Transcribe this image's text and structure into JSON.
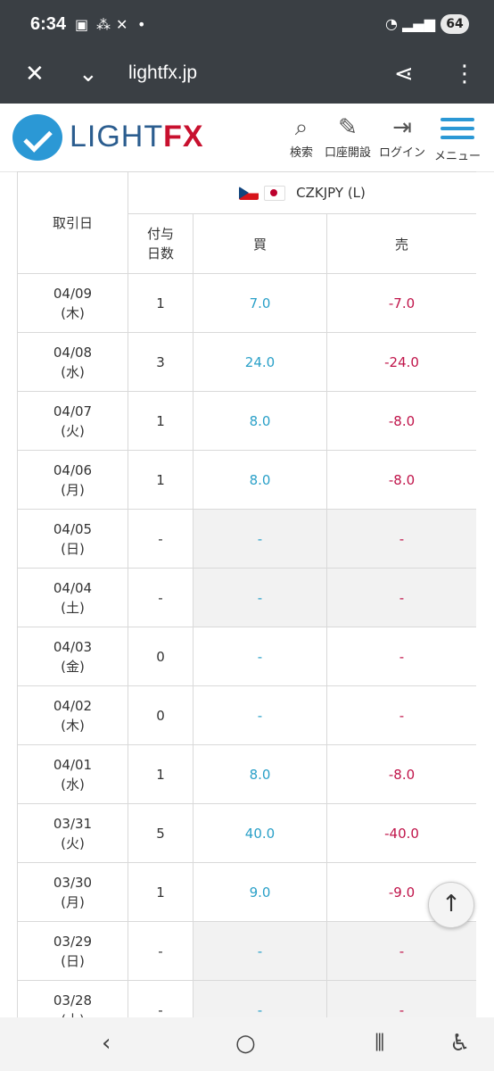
{
  "status": {
    "time": "6:34",
    "battery": "64"
  },
  "browser": {
    "url": "lightfx.jp"
  },
  "site": {
    "logo_light": "LIGHT",
    "logo_fx": "FX",
    "nav": {
      "search": "検索",
      "open_account": "口座開設",
      "login": "ログイン",
      "menu": "メニュー"
    }
  },
  "table": {
    "header": {
      "date": "取引日",
      "pair": "CZKJPY (L)",
      "days": "付与\n日数",
      "buy": "買",
      "sell": "売"
    },
    "rows": [
      {
        "date": "04/09",
        "dow": "(木)",
        "days": "1",
        "buy": "7.0",
        "sell": "-7.0",
        "dim": false
      },
      {
        "date": "04/08",
        "dow": "(水)",
        "days": "3",
        "buy": "24.0",
        "sell": "-24.0",
        "dim": false
      },
      {
        "date": "04/07",
        "dow": "(火)",
        "days": "1",
        "buy": "8.0",
        "sell": "-8.0",
        "dim": false
      },
      {
        "date": "04/06",
        "dow": "(月)",
        "days": "1",
        "buy": "8.0",
        "sell": "-8.0",
        "dim": false
      },
      {
        "date": "04/05",
        "dow": "(日)",
        "days": "-",
        "buy": "-",
        "sell": "-",
        "dim": true
      },
      {
        "date": "04/04",
        "dow": "(土)",
        "days": "-",
        "buy": "-",
        "sell": "-",
        "dim": true
      },
      {
        "date": "04/03",
        "dow": "(金)",
        "days": "0",
        "buy": "-",
        "sell": "-",
        "dim": false
      },
      {
        "date": "04/02",
        "dow": "(木)",
        "days": "0",
        "buy": "-",
        "sell": "-",
        "dim": false
      },
      {
        "date": "04/01",
        "dow": "(水)",
        "days": "1",
        "buy": "8.0",
        "sell": "-8.0",
        "dim": false
      },
      {
        "date": "03/31",
        "dow": "(火)",
        "days": "5",
        "buy": "40.0",
        "sell": "-40.0",
        "dim": false
      },
      {
        "date": "03/30",
        "dow": "(月)",
        "days": "1",
        "buy": "9.0",
        "sell": "-9.0",
        "dim": false
      },
      {
        "date": "03/29",
        "dow": "(日)",
        "days": "-",
        "buy": "-",
        "sell": "-",
        "dim": true
      },
      {
        "date": "03/28",
        "dow": "(土)",
        "days": "-",
        "buy": "-",
        "sell": "-",
        "dim": true
      }
    ]
  },
  "colors": {
    "buy": "#2aa0c8",
    "sell": "#c0144a",
    "brand_blue": "#2b98d5",
    "brand_red": "#c8102e"
  },
  "icons": {
    "close": "close-icon",
    "tabs": "chevron-down-icon",
    "share": "share-icon",
    "more": "more-vert-icon",
    "search": "search-icon",
    "open_account": "pen-icon",
    "login": "login-icon",
    "menu": "hamburger-icon",
    "to_top": "arrow-up-icon"
  }
}
